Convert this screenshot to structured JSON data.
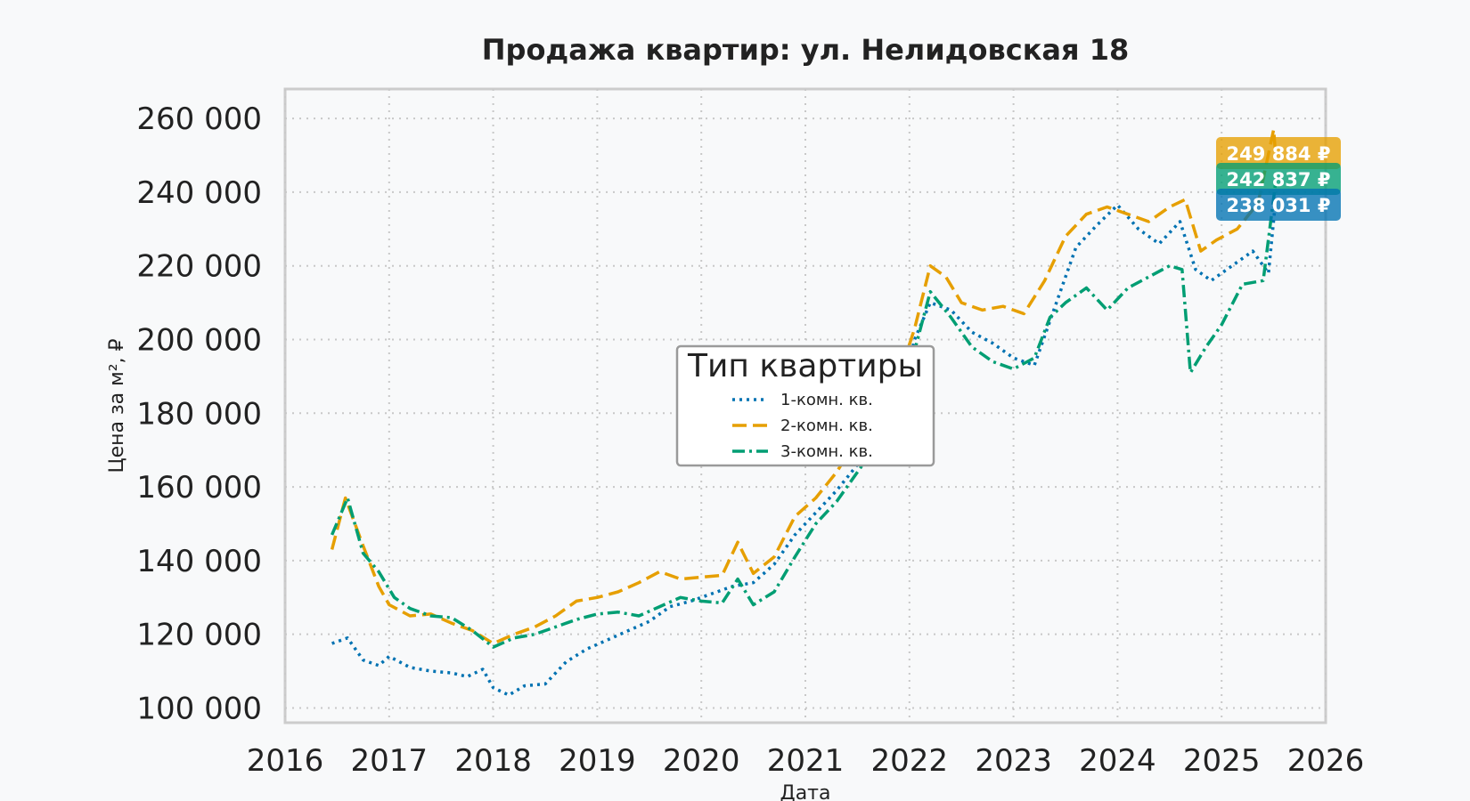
{
  "chart_data": {
    "type": "line",
    "title": "Продажа квартир: ул. Нелидовская 18",
    "xlabel": "Дата",
    "ylabel": "Цена за м², ₽",
    "xlim": [
      2016,
      2026
    ],
    "ylim": [
      96000,
      268000
    ],
    "x_ticks": [
      2016,
      2017,
      2018,
      2019,
      2020,
      2021,
      2022,
      2023,
      2024,
      2025,
      2026
    ],
    "x_tick_labels": [
      "2016",
      "2017",
      "2018",
      "2019",
      "2020",
      "2021",
      "2022",
      "2023",
      "2024",
      "2025",
      "2026"
    ],
    "y_ticks": [
      100000,
      120000,
      140000,
      160000,
      180000,
      200000,
      220000,
      240000,
      260000
    ],
    "y_tick_labels": [
      "100 000",
      "120 000",
      "140 000",
      "160 000",
      "180 000",
      "200 000",
      "220 000",
      "240 000",
      "260 000"
    ],
    "grid": true,
    "legend": {
      "title": "Тип квартиры",
      "placement": "center"
    },
    "series": [
      {
        "name": "1-комн. кв.",
        "color": "#0072b2",
        "dash": "dotted",
        "end_label": "238 031 ₽",
        "points": [
          [
            2016.45,
            117500
          ],
          [
            2016.6,
            119000
          ],
          [
            2016.75,
            113000
          ],
          [
            2016.9,
            111500
          ],
          [
            2017.0,
            114000
          ],
          [
            2017.2,
            111000
          ],
          [
            2017.4,
            110000
          ],
          [
            2017.6,
            109500
          ],
          [
            2017.75,
            108500
          ],
          [
            2017.9,
            110500
          ],
          [
            2018.0,
            105500
          ],
          [
            2018.15,
            103500
          ],
          [
            2018.3,
            106000
          ],
          [
            2018.5,
            106500
          ],
          [
            2018.7,
            112500
          ],
          [
            2018.9,
            116000
          ],
          [
            2019.1,
            118500
          ],
          [
            2019.3,
            121000
          ],
          [
            2019.5,
            123500
          ],
          [
            2019.7,
            127500
          ],
          [
            2019.9,
            129000
          ],
          [
            2020.1,
            131000
          ],
          [
            2020.3,
            133000
          ],
          [
            2020.5,
            134000
          ],
          [
            2020.7,
            139000
          ],
          [
            2020.9,
            147000
          ],
          [
            2021.1,
            153000
          ],
          [
            2021.3,
            159000
          ],
          [
            2021.5,
            166000
          ],
          [
            2021.7,
            173000
          ],
          [
            2021.9,
            183000
          ],
          [
            2022.05,
            200000
          ],
          [
            2022.2,
            210000
          ],
          [
            2022.4,
            208000
          ],
          [
            2022.6,
            202000
          ],
          [
            2022.8,
            199000
          ],
          [
            2023.0,
            195000
          ],
          [
            2023.2,
            193000
          ],
          [
            2023.4,
            209000
          ],
          [
            2023.6,
            225000
          ],
          [
            2023.8,
            231000
          ],
          [
            2024.0,
            236500
          ],
          [
            2024.2,
            230000
          ],
          [
            2024.4,
            226000
          ],
          [
            2024.6,
            232000
          ],
          [
            2024.75,
            219000
          ],
          [
            2024.9,
            216000
          ],
          [
            2025.1,
            220000
          ],
          [
            2025.3,
            224000
          ],
          [
            2025.45,
            218000
          ],
          [
            2025.52,
            238031
          ]
        ]
      },
      {
        "name": "2-комн. кв.",
        "color": "#e69f00",
        "dash": "dashed",
        "end_label": "249 884 ₽",
        "points": [
          [
            2016.45,
            143000
          ],
          [
            2016.58,
            157000
          ],
          [
            2016.75,
            144000
          ],
          [
            2016.9,
            133000
          ],
          [
            2017.0,
            128000
          ],
          [
            2017.2,
            125000
          ],
          [
            2017.4,
            125500
          ],
          [
            2017.6,
            123000
          ],
          [
            2017.8,
            121000
          ],
          [
            2018.0,
            117500
          ],
          [
            2018.2,
            120000
          ],
          [
            2018.4,
            122000
          ],
          [
            2018.6,
            125000
          ],
          [
            2018.8,
            129000
          ],
          [
            2019.0,
            130000
          ],
          [
            2019.2,
            131500
          ],
          [
            2019.4,
            134000
          ],
          [
            2019.6,
            137000
          ],
          [
            2019.8,
            135000
          ],
          [
            2020.0,
            135500
          ],
          [
            2020.2,
            136000
          ],
          [
            2020.35,
            145000
          ],
          [
            2020.5,
            136500
          ],
          [
            2020.7,
            141000
          ],
          [
            2020.9,
            152000
          ],
          [
            2021.1,
            157000
          ],
          [
            2021.3,
            164000
          ],
          [
            2021.5,
            173000
          ],
          [
            2021.7,
            181000
          ],
          [
            2021.9,
            190000
          ],
          [
            2022.05,
            203000
          ],
          [
            2022.2,
            220000
          ],
          [
            2022.35,
            217000
          ],
          [
            2022.5,
            210000
          ],
          [
            2022.7,
            208000
          ],
          [
            2022.9,
            209000
          ],
          [
            2023.1,
            207000
          ],
          [
            2023.3,
            216000
          ],
          [
            2023.5,
            228000
          ],
          [
            2023.7,
            234000
          ],
          [
            2023.9,
            236000
          ],
          [
            2024.1,
            234000
          ],
          [
            2024.3,
            232000
          ],
          [
            2024.5,
            236000
          ],
          [
            2024.65,
            238000
          ],
          [
            2024.8,
            224000
          ],
          [
            2024.95,
            227000
          ],
          [
            2025.15,
            230000
          ],
          [
            2025.35,
            237000
          ],
          [
            2025.5,
            257000
          ],
          [
            2025.52,
            249884
          ]
        ]
      },
      {
        "name": "3-комн. кв.",
        "color": "#009e73",
        "dash": "dashdot",
        "end_label": "242 837 ₽",
        "points": [
          [
            2016.45,
            147000
          ],
          [
            2016.6,
            157000
          ],
          [
            2016.75,
            142000
          ],
          [
            2016.9,
            137000
          ],
          [
            2017.05,
            130000
          ],
          [
            2017.2,
            127000
          ],
          [
            2017.4,
            125000
          ],
          [
            2017.6,
            124500
          ],
          [
            2017.8,
            121000
          ],
          [
            2018.0,
            116500
          ],
          [
            2018.2,
            119000
          ],
          [
            2018.4,
            120000
          ],
          [
            2018.6,
            122000
          ],
          [
            2018.8,
            124000
          ],
          [
            2019.0,
            125500
          ],
          [
            2019.2,
            126000
          ],
          [
            2019.4,
            125000
          ],
          [
            2019.6,
            127500
          ],
          [
            2019.8,
            130000
          ],
          [
            2020.0,
            129000
          ],
          [
            2020.2,
            128500
          ],
          [
            2020.35,
            135000
          ],
          [
            2020.5,
            128000
          ],
          [
            2020.7,
            131500
          ],
          [
            2020.9,
            141000
          ],
          [
            2021.1,
            150000
          ],
          [
            2021.3,
            156000
          ],
          [
            2021.5,
            164000
          ],
          [
            2021.7,
            172000
          ],
          [
            2021.9,
            180000
          ],
          [
            2022.05,
            197000
          ],
          [
            2022.2,
            213000
          ],
          [
            2022.4,
            206000
          ],
          [
            2022.6,
            198000
          ],
          [
            2022.8,
            194000
          ],
          [
            2023.0,
            192000
          ],
          [
            2023.2,
            195000
          ],
          [
            2023.35,
            206000
          ],
          [
            2023.5,
            210000
          ],
          [
            2023.7,
            214000
          ],
          [
            2023.9,
            208000
          ],
          [
            2024.1,
            214000
          ],
          [
            2024.3,
            217000
          ],
          [
            2024.5,
            220000
          ],
          [
            2024.62,
            219000
          ],
          [
            2024.7,
            191000
          ],
          [
            2024.85,
            198000
          ],
          [
            2025.0,
            204000
          ],
          [
            2025.2,
            215000
          ],
          [
            2025.4,
            216000
          ],
          [
            2025.52,
            242837
          ]
        ]
      }
    ]
  }
}
